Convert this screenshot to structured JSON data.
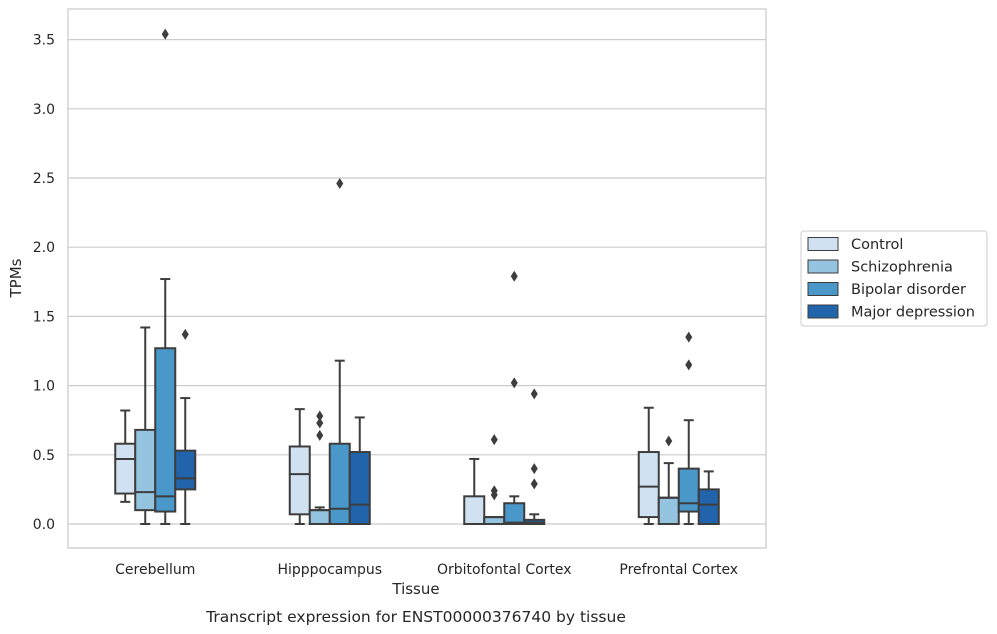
{
  "chart_data": {
    "type": "box",
    "title": "",
    "caption": "Transcript expression for ENST00000376740 by tissue",
    "xlabel": "Tissue",
    "ylabel": "TPMs",
    "ylim": [
      -0.17,
      3.72
    ],
    "yticks": [
      "0.0",
      "0.5",
      "1.0",
      "1.5",
      "2.0",
      "2.5",
      "3.0",
      "3.5"
    ],
    "ytick_values": [
      0,
      0.5,
      1.0,
      1.5,
      2.0,
      2.5,
      3.0,
      3.5
    ],
    "grid": "horizontal",
    "legend_position": "right",
    "categories": [
      "Cerebellum",
      "Hipppocampus",
      "Orbitofontal Cortex",
      "Prefrontal Cortex"
    ],
    "series": [
      {
        "name": "Control",
        "color": "#d0e1f2",
        "boxes": [
          {
            "whislo": 0.16,
            "q1": 0.22,
            "med": 0.47,
            "q3": 0.58,
            "whishi": 0.82,
            "fliers": []
          },
          {
            "whislo": 0.0,
            "q1": 0.07,
            "med": 0.36,
            "q3": 0.56,
            "whishi": 0.83,
            "fliers": []
          },
          {
            "whislo": 0.0,
            "q1": 0.0,
            "med": 0.0,
            "q3": 0.2,
            "whishi": 0.47,
            "fliers": []
          },
          {
            "whislo": 0.0,
            "q1": 0.05,
            "med": 0.27,
            "q3": 0.52,
            "whishi": 0.84,
            "fliers": []
          }
        ]
      },
      {
        "name": "Schizophrenia",
        "color": "#94c4df",
        "boxes": [
          {
            "whislo": 0.0,
            "q1": 0.1,
            "med": 0.23,
            "q3": 0.68,
            "whishi": 1.42,
            "fliers": []
          },
          {
            "whislo": 0.0,
            "q1": 0.0,
            "med": 0.1,
            "q3": 0.1,
            "whishi": 0.12,
            "fliers": [
              0.64,
              0.73,
              0.78
            ]
          },
          {
            "whislo": 0.0,
            "q1": 0.0,
            "med": 0.05,
            "q3": 0.05,
            "whishi": 0.05,
            "fliers": [
              0.21,
              0.24,
              0.61
            ]
          },
          {
            "whislo": 0.0,
            "q1": 0.0,
            "med": 0.19,
            "q3": 0.19,
            "whishi": 0.44,
            "fliers": [
              0.6
            ]
          }
        ]
      },
      {
        "name": "Bipolar disorder",
        "color": "#4a98c9",
        "boxes": [
          {
            "whislo": 0.0,
            "q1": 0.09,
            "med": 0.2,
            "q3": 1.27,
            "whishi": 1.77,
            "fliers": [
              3.54
            ]
          },
          {
            "whislo": 0.0,
            "q1": 0.0,
            "med": 0.11,
            "q3": 0.58,
            "whishi": 1.18,
            "fliers": [
              2.46
            ]
          },
          {
            "whislo": 0.0,
            "q1": 0.0,
            "med": 0.01,
            "q3": 0.15,
            "whishi": 0.2,
            "fliers": [
              1.02,
              1.79
            ]
          },
          {
            "whislo": 0.0,
            "q1": 0.09,
            "med": 0.15,
            "q3": 0.4,
            "whishi": 0.75,
            "fliers": [
              1.15,
              1.35
            ]
          }
        ]
      },
      {
        "name": "Major depression",
        "color": "#2164ab",
        "boxes": [
          {
            "whislo": 0.0,
            "q1": 0.25,
            "med": 0.33,
            "q3": 0.53,
            "whishi": 0.91,
            "fliers": [
              1.37
            ]
          },
          {
            "whislo": 0.0,
            "q1": 0.0,
            "med": 0.14,
            "q3": 0.52,
            "whishi": 0.77,
            "fliers": []
          },
          {
            "whislo": 0.0,
            "q1": 0.0,
            "med": 0.01,
            "q3": 0.03,
            "whishi": 0.07,
            "fliers": [
              0.29,
              0.4,
              0.94
            ]
          },
          {
            "whislo": 0.0,
            "q1": 0.0,
            "med": 0.14,
            "q3": 0.25,
            "whishi": 0.38,
            "fliers": []
          }
        ]
      }
    ]
  },
  "colors": {
    "grid": "#cccccc",
    "frame": "#cccccc",
    "line": "#3d3d3d"
  }
}
